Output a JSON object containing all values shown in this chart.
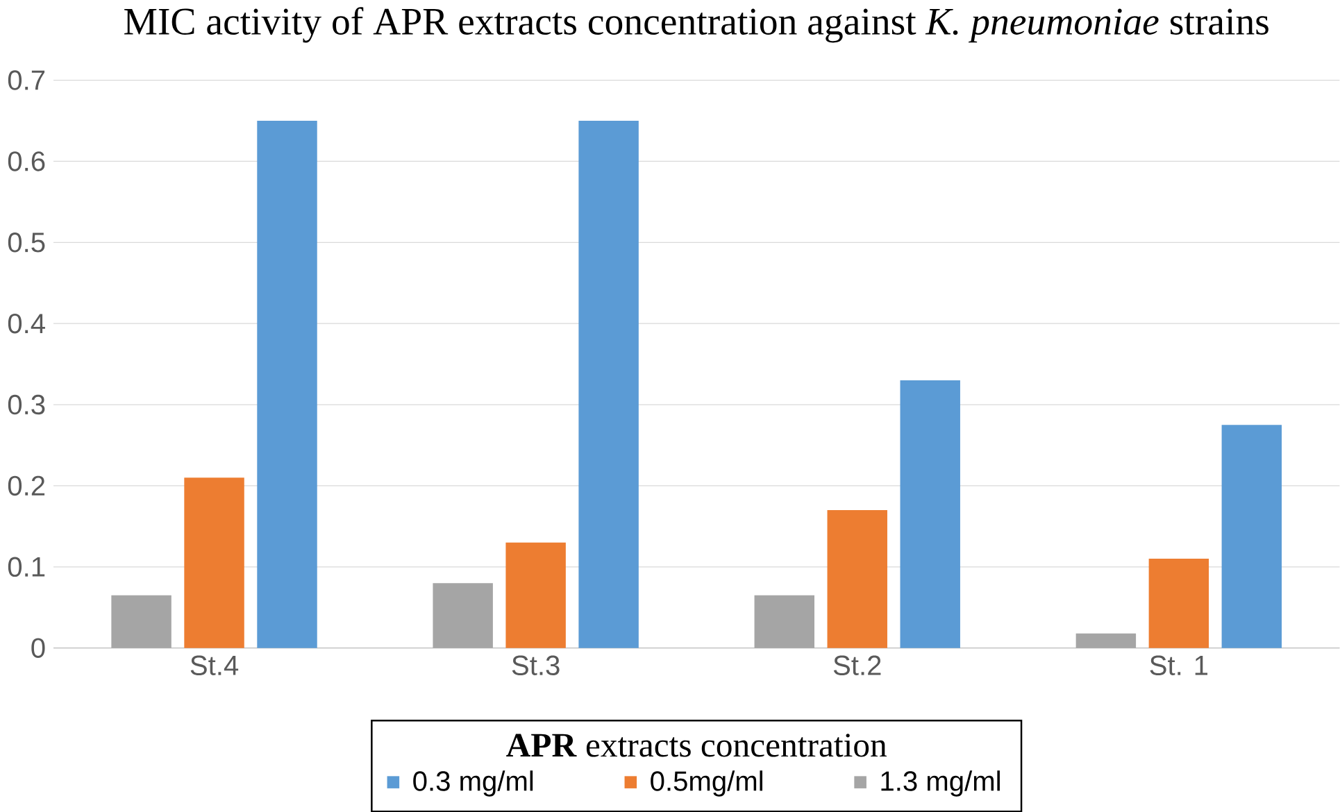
{
  "chart_data": {
    "type": "bar",
    "title": "MIC activity of APR extracts concentration against *K. pneumoniae* strains",
    "legend_title": "**APR** extracts concentration",
    "categories": [
      "St.4",
      "St.3",
      "St.2",
      "St. 1"
    ],
    "series": [
      {
        "name": "1.3 mg/ml",
        "color": "#a5a5a5",
        "values": [
          0.065,
          0.08,
          0.065,
          0.018
        ]
      },
      {
        "name": "0.5mg/ml",
        "color": "#ed7d31",
        "values": [
          0.21,
          0.13,
          0.17,
          0.11
        ]
      },
      {
        "name": "0.3 mg/ml",
        "color": "#5b9bd5",
        "values": [
          0.65,
          0.65,
          0.33,
          0.275
        ]
      }
    ],
    "ylim": [
      0,
      0.7
    ],
    "yticks": [
      0,
      0.1,
      0.2,
      0.3,
      0.4,
      0.5,
      0.6,
      0.7
    ],
    "grid": "y",
    "legend": "bottom"
  }
}
